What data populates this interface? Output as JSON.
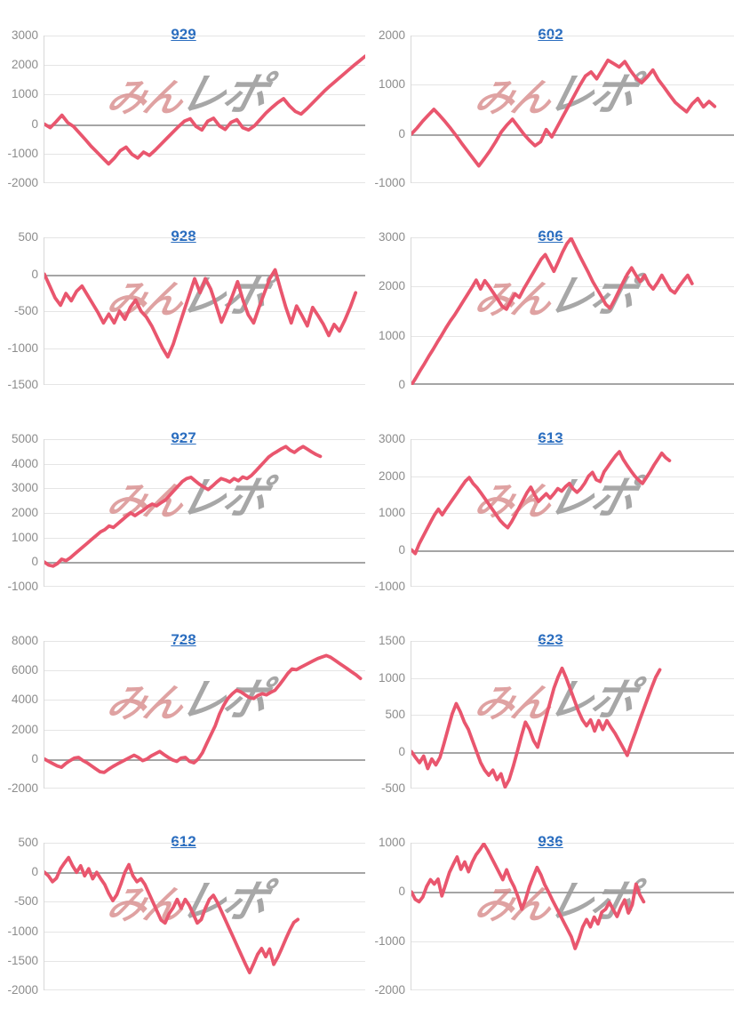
{
  "page": {
    "background": "#ffffff"
  },
  "watermark": {
    "part1": "みん",
    "part2": "レポ"
  },
  "colors": {
    "line": "#e9566e",
    "grid": "#e5e5e5",
    "zero_line": "#a5a5a5",
    "tick_label": "#8c8c8c",
    "title_link": "#2a6dbf",
    "axis_border": "#d8d8d8",
    "watermark_red": "#d47f7f",
    "watermark_gray": "#9b9b9b"
  },
  "chart_data": [
    {
      "type": "line",
      "title": "929",
      "ylim": [
        -2000,
        3000
      ],
      "yticks": [
        3000,
        2000,
        1000,
        0,
        -1000,
        -2000
      ],
      "end_frac": 1.0,
      "values": [
        0,
        -120,
        80,
        300,
        50,
        -80,
        -300,
        -520,
        -750,
        -950,
        -1150,
        -1350,
        -1150,
        -900,
        -780,
        -1020,
        -1150,
        -950,
        -1060,
        -880,
        -680,
        -480,
        -280,
        -80,
        100,
        180,
        -80,
        -200,
        100,
        200,
        -60,
        -180,
        60,
        150,
        -120,
        -200,
        -60,
        160,
        380,
        560,
        730,
        860,
        620,
        430,
        340,
        520,
        720,
        920,
        1120,
        1300,
        1470,
        1640,
        1810,
        1980,
        2140,
        2300
      ]
    },
    {
      "type": "line",
      "title": "602",
      "ylim": [
        -1000,
        2000
      ],
      "yticks": [
        2000,
        1000,
        0,
        -1000
      ],
      "end_frac": 0.94,
      "values": [
        0,
        120,
        260,
        380,
        500,
        380,
        250,
        110,
        -40,
        -200,
        -350,
        -500,
        -650,
        -500,
        -340,
        -160,
        40,
        180,
        300,
        150,
        0,
        -130,
        -240,
        -160,
        90,
        -60,
        150,
        360,
        570,
        780,
        990,
        1180,
        1260,
        1120,
        1310,
        1500,
        1430,
        1360,
        1470,
        1290,
        1140,
        1040,
        1160,
        1300,
        1100,
        950,
        790,
        640,
        540,
        450,
        610,
        720,
        550,
        660,
        560
      ]
    },
    {
      "type": "line",
      "title": "928",
      "ylim": [
        -1500,
        500
      ],
      "yticks": [
        500,
        0,
        -500,
        -1000,
        -1500
      ],
      "end_frac": 0.97,
      "values": [
        0,
        -160,
        -320,
        -420,
        -260,
        -360,
        -230,
        -160,
        -280,
        -400,
        -520,
        -660,
        -540,
        -660,
        -500,
        -610,
        -450,
        -350,
        -500,
        -580,
        -700,
        -850,
        -1000,
        -1120,
        -950,
        -720,
        -500,
        -280,
        -60,
        -250,
        -60,
        -200,
        -420,
        -650,
        -480,
        -300,
        -100,
        -350,
        -550,
        -660,
        -450,
        -250,
        -60,
        60,
        -200,
        -450,
        -660,
        -430,
        -560,
        -700,
        -450,
        -560,
        -680,
        -830,
        -680,
        -770,
        -620,
        -450,
        -250
      ]
    },
    {
      "type": "line",
      "title": "606",
      "ylim": [
        0,
        3000
      ],
      "yticks": [
        3000,
        2000,
        1000,
        0
      ],
      "end_frac": 0.87,
      "values": [
        0,
        140,
        290,
        430,
        580,
        720,
        870,
        1010,
        1160,
        1300,
        1420,
        1560,
        1700,
        1840,
        1980,
        2130,
        1950,
        2120,
        2000,
        1870,
        1740,
        1600,
        1540,
        1700,
        1850,
        1780,
        1950,
        2100,
        2250,
        2400,
        2550,
        2650,
        2480,
        2310,
        2500,
        2700,
        2870,
        2980,
        2800,
        2620,
        2450,
        2280,
        2100,
        1950,
        1800,
        1640,
        1560,
        1720,
        1900,
        2080,
        2250,
        2380,
        2230,
        2100,
        2230,
        2050,
        1950,
        2080,
        2230,
        2080,
        1930,
        1870,
        2000,
        2120,
        2230,
        2060
      ]
    },
    {
      "type": "line",
      "title": "927",
      "ylim": [
        -1000,
        5000
      ],
      "yticks": [
        5000,
        4000,
        3000,
        2000,
        1000,
        0,
        -1000
      ],
      "end_frac": 0.86,
      "values": [
        0,
        -120,
        -160,
        -60,
        120,
        60,
        180,
        330,
        480,
        630,
        780,
        930,
        1080,
        1230,
        1320,
        1470,
        1410,
        1560,
        1710,
        1860,
        2000,
        1890,
        2010,
        2120,
        2260,
        2360,
        2290,
        2410,
        2520,
        2710,
        2900,
        3090,
        3280,
        3400,
        3450,
        3300,
        3160,
        3050,
        2950,
        3100,
        3260,
        3400,
        3340,
        3260,
        3400,
        3310,
        3460,
        3400,
        3520,
        3700,
        3890,
        4080,
        4270,
        4400,
        4500,
        4610,
        4700,
        4550,
        4460,
        4600,
        4700,
        4590,
        4480,
        4380,
        4300
      ]
    },
    {
      "type": "line",
      "title": "613",
      "ylim": [
        -1000,
        3000
      ],
      "yticks": [
        3000,
        2000,
        1000,
        0,
        -1000
      ],
      "end_frac": 0.8,
      "values": [
        0,
        -100,
        160,
        360,
        560,
        760,
        950,
        1100,
        950,
        1110,
        1260,
        1410,
        1560,
        1710,
        1860,
        1960,
        1800,
        1690,
        1550,
        1400,
        1250,
        1100,
        950,
        800,
        690,
        600,
        760,
        950,
        1150,
        1350,
        1550,
        1700,
        1490,
        1310,
        1420,
        1520,
        1400,
        1520,
        1660,
        1590,
        1710,
        1800,
        1650,
        1560,
        1660,
        1810,
        2000,
        2100,
        1900,
        1850,
        2110,
        2260,
        2410,
        2550,
        2660,
        2450,
        2290,
        2140,
        2000,
        1890,
        1800,
        1960,
        2120,
        2300,
        2460,
        2620,
        2500,
        2420
      ]
    },
    {
      "type": "line",
      "title": "728",
      "ylim": [
        -2000,
        8000
      ],
      "yticks": [
        8000,
        6000,
        4000,
        2000,
        0,
        -2000
      ],
      "end_frac": 0.985,
      "values": [
        0,
        -160,
        -320,
        -470,
        -560,
        -300,
        -110,
        60,
        110,
        -100,
        -260,
        -460,
        -660,
        -860,
        -910,
        -700,
        -510,
        -350,
        -200,
        -50,
        110,
        260,
        110,
        -110,
        0,
        210,
        360,
        510,
        300,
        110,
        -60,
        -160,
        60,
        110,
        -160,
        -260,
        0,
        420,
        1050,
        1650,
        2250,
        3050,
        3650,
        4120,
        4420,
        4660,
        4550,
        4350,
        4160,
        4100,
        4310,
        4420,
        4350,
        4520,
        4660,
        5010,
        5400,
        5800,
        6100,
        6050,
        6210,
        6360,
        6510,
        6660,
        6810,
        6910,
        7010,
        6900,
        6700,
        6500,
        6300,
        6100,
        5900,
        5700,
        5460
      ]
    },
    {
      "type": "line",
      "title": "623",
      "ylim": [
        -500,
        1500
      ],
      "yticks": [
        1500,
        1000,
        500,
        0,
        -500
      ],
      "end_frac": 0.77,
      "values": [
        0,
        -80,
        -150,
        -60,
        -230,
        -100,
        -180,
        -80,
        110,
        310,
        510,
        650,
        540,
        400,
        300,
        150,
        0,
        -150,
        -250,
        -320,
        -250,
        -380,
        -300,
        -480,
        -380,
        -200,
        0,
        210,
        400,
        300,
        150,
        60,
        260,
        460,
        660,
        860,
        1010,
        1130,
        1000,
        850,
        700,
        550,
        430,
        350,
        430,
        280,
        420,
        300,
        420,
        330,
        250,
        150,
        50,
        -50,
        110,
        260,
        420,
        570,
        720,
        870,
        1010,
        1110
      ]
    },
    {
      "type": "line",
      "title": "612",
      "ylim": [
        -2000,
        500
      ],
      "yticks": [
        500,
        0,
        -500,
        -1000,
        -1500,
        -2000
      ],
      "end_frac": 0.79,
      "values": [
        0,
        -60,
        -160,
        -100,
        60,
        160,
        250,
        110,
        0,
        110,
        -60,
        60,
        -110,
        0,
        -110,
        -210,
        -360,
        -480,
        -380,
        -200,
        0,
        130,
        -60,
        -160,
        -110,
        -210,
        -360,
        -510,
        -660,
        -810,
        -860,
        -700,
        -600,
        -460,
        -610,
        -460,
        -560,
        -710,
        -860,
        -800,
        -610,
        -460,
        -390,
        -510,
        -660,
        -810,
        -960,
        -1110,
        -1260,
        -1410,
        -1560,
        -1700,
        -1550,
        -1390,
        -1290,
        -1430,
        -1300,
        -1560,
        -1440,
        -1290,
        -1130,
        -980,
        -850,
        -800
      ]
    },
    {
      "type": "line",
      "title": "936",
      "ylim": [
        -2000,
        1000
      ],
      "yticks": [
        1000,
        0,
        -1000,
        -2000
      ],
      "end_frac": 0.72,
      "values": [
        0,
        -150,
        -200,
        -100,
        110,
        250,
        160,
        260,
        -80,
        160,
        400,
        560,
        710,
        460,
        610,
        410,
        610,
        760,
        860,
        980,
        850,
        700,
        550,
        400,
        250,
        450,
        250,
        100,
        -100,
        -350,
        -150,
        110,
        310,
        500,
        350,
        150,
        0,
        -160,
        -310,
        -460,
        -610,
        -760,
        -910,
        -1150,
        -950,
        -710,
        -560,
        -710,
        -510,
        -650,
        -410,
        -350,
        -210,
        -360,
        -500,
        -310,
        -160,
        -430,
        -260,
        160,
        -60,
        -200
      ]
    }
  ]
}
